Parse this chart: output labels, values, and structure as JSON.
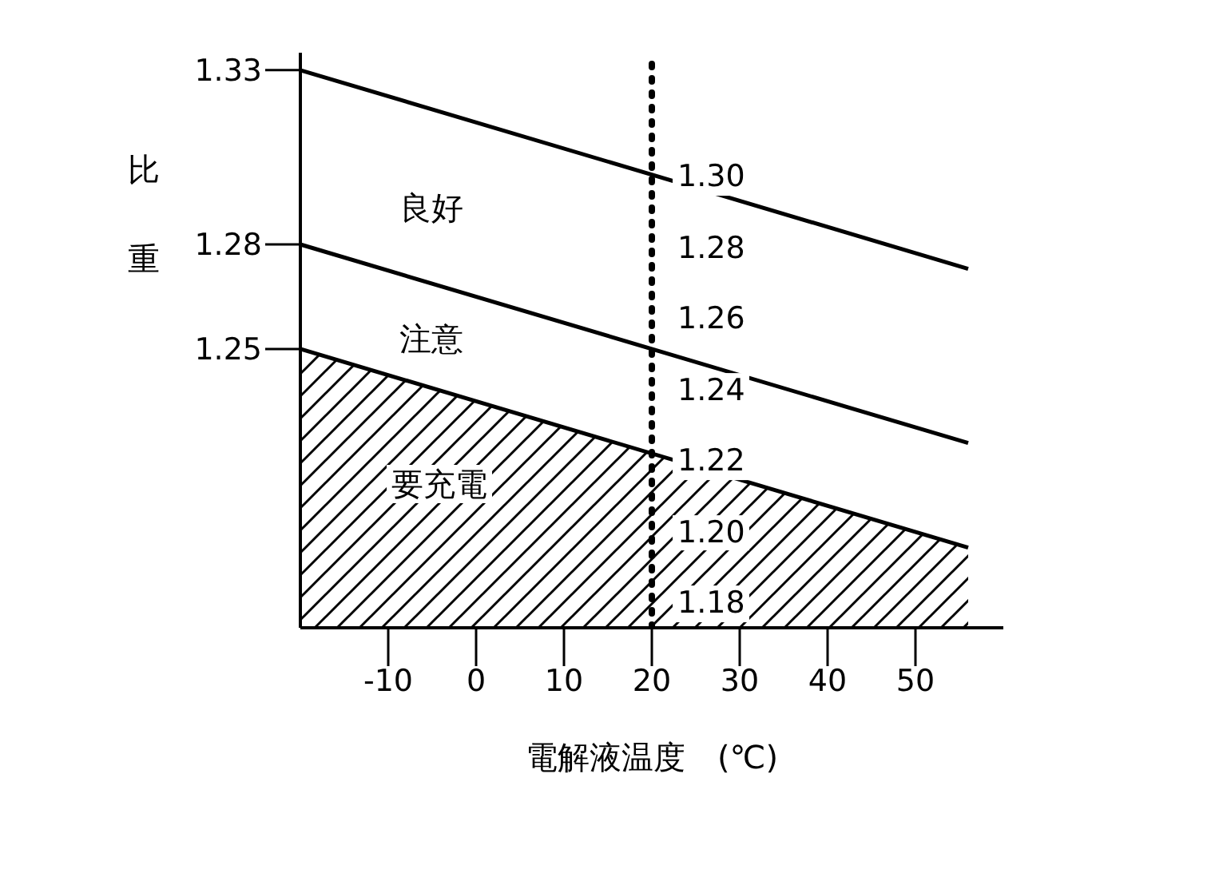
{
  "chart_data": {
    "type": "line",
    "xlabel": "電解液温度　(℃)",
    "ylabel": "比重",
    "series": [
      {
        "color": "#000000",
        "values": [
          1.33,
          1.273
        ]
      },
      {
        "color": "#000000",
        "values": [
          1.28,
          1.223
        ]
      },
      {
        "type": "area",
        "color": "#000000",
        "values": [
          1.25,
          1.193
        ]
      }
    ],
    "x": [
      -20,
      56
    ],
    "xlim": [
      -20,
      60
    ],
    "xticks": [
      -10,
      0,
      10,
      20,
      30,
      40,
      50
    ],
    "ylim": [
      1.17,
      1.335
    ],
    "yticks": [
      1.33,
      1.28,
      1.25
    ],
    "ref_lines": [
      {
        "axis": "x",
        "value": 20,
        "line_style": "dotted",
        "color": "#000000"
      }
    ],
    "annotations": [
      "良好",
      "注意",
      "要充電",
      "1.30",
      "1.28",
      "1.26",
      "1.24",
      "1.22",
      "1.20",
      "1.18"
    ],
    "grid": false,
    "legend": false,
    "marker": "none",
    "line_style": "solid"
  }
}
